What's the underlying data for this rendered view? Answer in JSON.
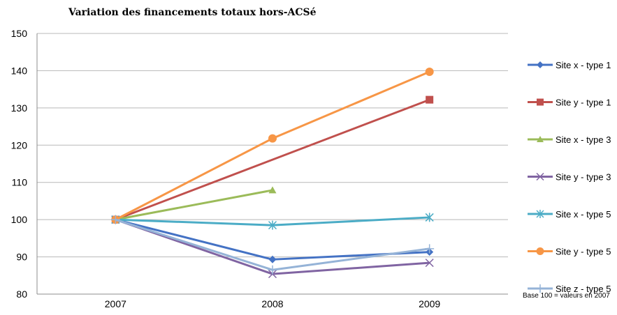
{
  "chart_data": {
    "type": "line",
    "title": "Variation des financements totaux hors-ACSé",
    "xlabel": "",
    "ylabel": "",
    "x": [
      "2007",
      "2008",
      "2009"
    ],
    "ylim": [
      80,
      150
    ],
    "yticks": [
      80,
      90,
      100,
      110,
      120,
      130,
      140,
      150
    ],
    "grid": true,
    "legend_position": "right",
    "series": [
      {
        "name": "Site x - type 1",
        "color": "#4472C4",
        "marker": "diamond",
        "values": [
          100,
          89.3,
          91.3
        ]
      },
      {
        "name": "Site y - type 1",
        "color": "#C0504D",
        "marker": "square",
        "values": [
          100,
          null,
          132.2
        ]
      },
      {
        "name": "Site x - type 3",
        "color": "#9BBB59",
        "marker": "triangle",
        "values": [
          100,
          107.9,
          null
        ]
      },
      {
        "name": "Site y - type 3",
        "color": "#8064A2",
        "marker": "x",
        "values": [
          100,
          85.4,
          88.4
        ]
      },
      {
        "name": "Site x - type 5",
        "color": "#4BACC6",
        "marker": "star",
        "values": [
          100,
          98.5,
          100.6
        ]
      },
      {
        "name": "Site y - type 5",
        "color": "#F79646",
        "marker": "circle",
        "values": [
          100,
          121.8,
          139.7
        ]
      },
      {
        "name": "Site z - type 5",
        "color": "#95B3D7",
        "marker": "plus",
        "values": [
          100,
          86.5,
          92.2
        ]
      }
    ],
    "annotation": "Base 100 = valeurs en 2007"
  }
}
